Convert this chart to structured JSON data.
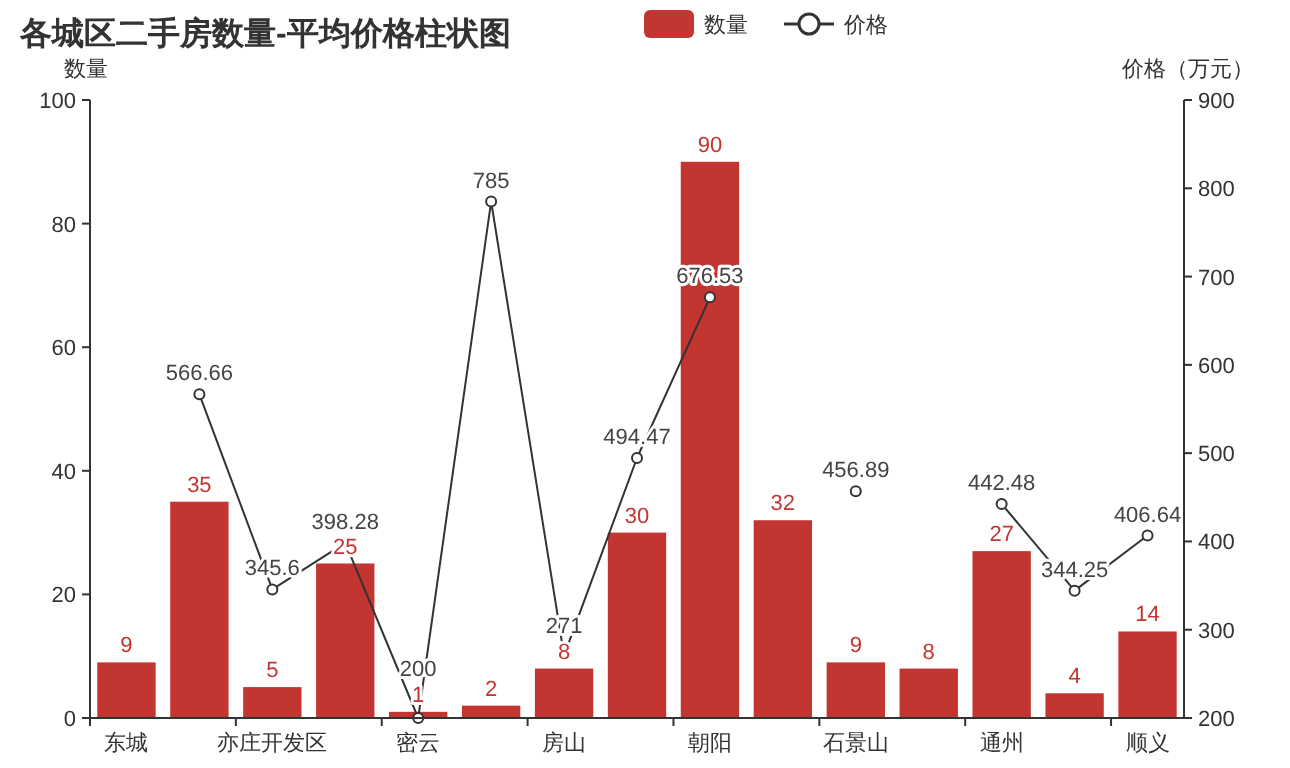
{
  "chart_data": {
    "type": "bar",
    "title": "各城区二手房数量-平均价格柱状图",
    "ylabel": "数量",
    "y2label": "价格（万元）",
    "categories": [
      "东城",
      null,
      "亦庄开发区",
      null,
      "密云",
      null,
      "房山",
      null,
      "朝阳",
      null,
      "石景山",
      null,
      "通州",
      null,
      "顺义"
    ],
    "series": [
      {
        "name": "数量",
        "color": "#c23531",
        "values": [
          9,
          35,
          5,
          25,
          1,
          2,
          8,
          30,
          90,
          32,
          9,
          8,
          27,
          4,
          14
        ]
      },
      {
        "name": "价格",
        "type": "line",
        "axis": "y2",
        "color": "#333333",
        "values": [
          null,
          566.66,
          345.6,
          398.28,
          200,
          785,
          271,
          494.47,
          676.53,
          null,
          456.89,
          null,
          442.48,
          344.25,
          406.64
        ]
      }
    ],
    "ylim": [
      0,
      100
    ],
    "yticks": [
      0,
      20,
      40,
      60,
      80,
      100
    ],
    "y2lim": [
      200,
      900
    ],
    "y2ticks": [
      200,
      300,
      400,
      500,
      600,
      700,
      800,
      900
    ],
    "data_labels": true,
    "legend": "top",
    "marker": "circle",
    "grid": false
  }
}
